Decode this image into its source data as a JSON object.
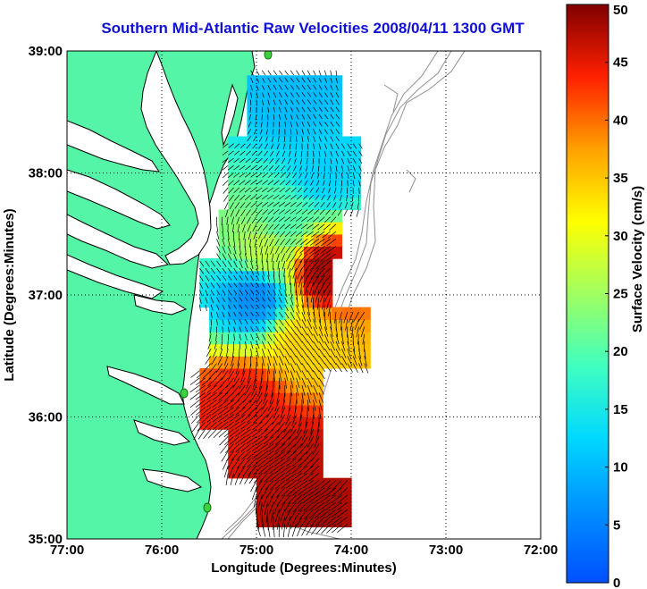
{
  "title": "Southern Mid-Atlantic Raw Velocities 2008/04/11 1300 GMT",
  "xlabel": "Longitude (Degrees:Minutes)",
  "ylabel": "Latitude (Degrees:Minutes)",
  "colorbar": {
    "label": "Surface Velocity (cm/s)",
    "ticks": [
      "0",
      "5",
      "10",
      "15",
      "20",
      "25",
      "30",
      "35",
      "40",
      "45",
      "50"
    ],
    "range": [
      0,
      50
    ]
  },
  "x_ticks": [
    "77:00",
    "76:00",
    "75:00",
    "74:00",
    "73:00",
    "72:00"
  ],
  "y_ticks": [
    "35:00",
    "36:00",
    "37:00",
    "38:00",
    "39:00"
  ],
  "colors": {
    "land": "#55f5a8",
    "title": "#1010d8",
    "water": "#ffffff"
  },
  "chart_data": {
    "type": "heatmap",
    "title": "Southern Mid-Atlantic Raw Velocities 2008/04/11 1300 GMT",
    "xlabel": "Longitude (Degrees:Minutes)",
    "ylabel": "Latitude (Degrees:Minutes)",
    "xlim": [
      -77,
      -72
    ],
    "ylim": [
      35,
      39
    ],
    "grid": true,
    "colorbar_range": [
      0,
      50
    ],
    "colorbar_label": "Surface Velocity (cm/s)",
    "colormap": "jet",
    "velocity_regions": [
      {
        "lon": -74.6,
        "lat": 38.6,
        "speed": 10
      },
      {
        "lon": -74.3,
        "lat": 38.0,
        "speed": 12
      },
      {
        "lon": -74.7,
        "lat": 37.6,
        "speed": 20
      },
      {
        "lon": -74.9,
        "lat": 37.35,
        "speed": 27
      },
      {
        "lon": -74.3,
        "lat": 37.2,
        "speed": 48
      },
      {
        "lon": -75.0,
        "lat": 37.0,
        "speed": 6
      },
      {
        "lon": -74.5,
        "lat": 36.6,
        "speed": 34
      },
      {
        "lon": -75.1,
        "lat": 36.1,
        "speed": 45
      },
      {
        "lon": -74.6,
        "lat": 35.6,
        "speed": 47
      },
      {
        "lon": -74.4,
        "lat": 35.25,
        "speed": 48
      }
    ]
  }
}
